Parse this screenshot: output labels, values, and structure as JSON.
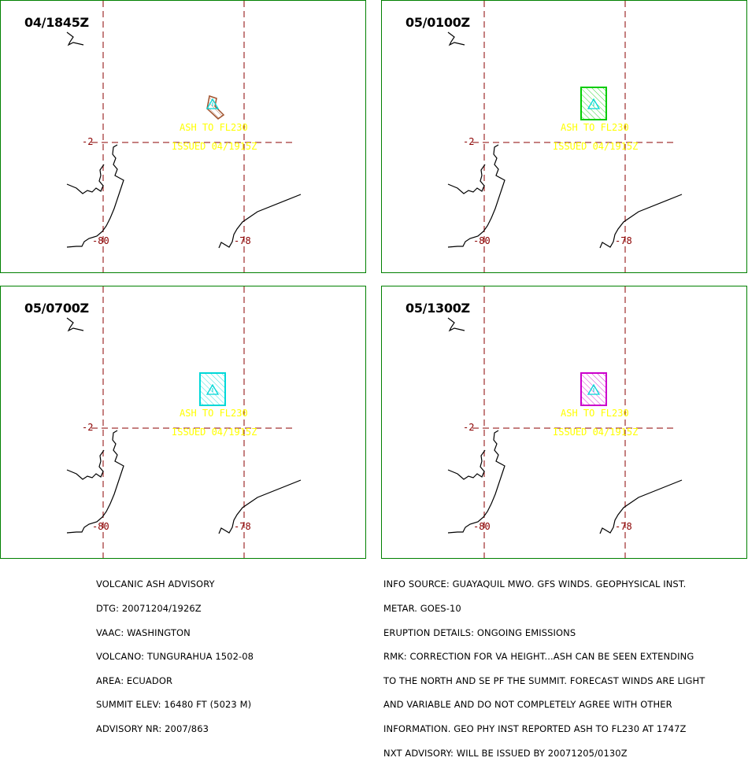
{
  "panels": [
    {
      "time": "04/1845Z",
      "ash_color": "#a0522d",
      "ash_shape": "polygon"
    },
    {
      "time": "05/0100Z",
      "ash_color": "#00cc00",
      "ash_shape": "box"
    },
    {
      "time": "05/0700Z",
      "ash_color": "#00d8d8",
      "ash_shape": "box"
    },
    {
      "time": "05/1300Z",
      "ash_color": "#cc00cc",
      "ash_shape": "box"
    }
  ],
  "map": {
    "lat_label": "-2",
    "lon_label_1": "-80",
    "lon_label_2": "-78",
    "ash_label": "ASH TO FL230",
    "issued_label": "ISSUED 04/1915Z",
    "volcano_symbol": "triangle-icon",
    "grid_color": "#8b0000",
    "coast_color": "#000000",
    "label_color": "#ffff00"
  },
  "advisory_left": [
    "VOLCANIC ASH ADVISORY",
    "DTG: 20071204/1926Z",
    "VAAC: WASHINGTON",
    "VOLCANO: TUNGURAHUA 1502-08",
    "AREA: ECUADOR",
    "SUMMIT ELEV: 16480 FT (5023 M)",
    "ADVISORY NR: 2007/863"
  ],
  "advisory_right": [
    "INFO SOURCE: GUAYAQUIL MWO. GFS WINDS. GEOPHYSICAL INST.",
    "METAR. GOES-10",
    "ERUPTION DETAILS: ONGOING EMISSIONS",
    "RMK: CORRECTION FOR VA HEIGHT...ASH CAN BE SEEN EXTENDING",
    "TO THE NORTH AND SE PF THE SUMMIT. FORECAST WINDS ARE LIGHT",
    "AND VARIABLE AND DO NOT COMPLETELY AGREE WITH OTHER",
    "INFORMATION. GEO PHY INST REPORTED ASH TO FL230 AT 1747Z",
    "NXT ADVISORY: WILL BE ISSUED BY 20071205/0130Z"
  ]
}
